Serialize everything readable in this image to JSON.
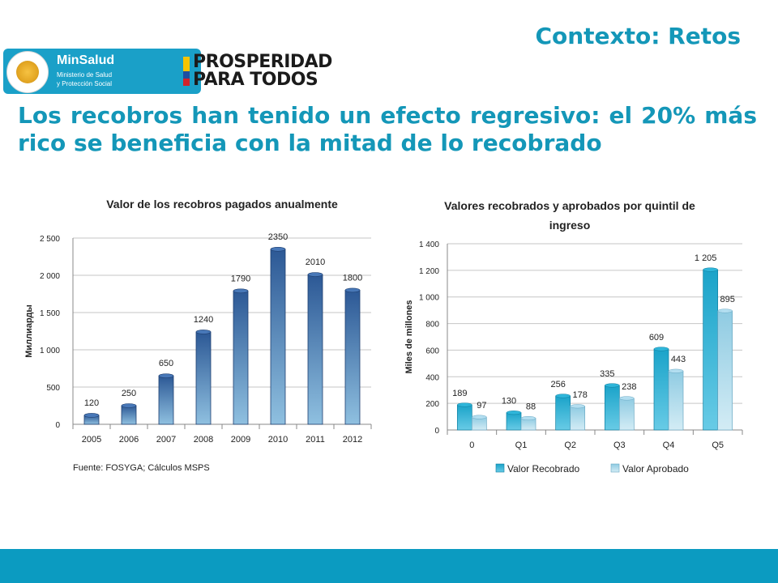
{
  "header": {
    "title": "Contexto: Retos"
  },
  "logos": {
    "minsalud": {
      "name": "MinSalud",
      "line1": "Ministerio de Salud",
      "line2": "y Protección Social"
    },
    "prosperidad": {
      "line1": "PROSPERIDAD",
      "line2": "PARA TODOS"
    }
  },
  "headline": "Los recobros han tenido un efecto regresivo: el 20% más rico se beneficia con la mitad de lo recobrado",
  "chart_data": [
    {
      "type": "bar",
      "title": "Valor de los  recobros pagados anualmente",
      "ylabel": "Миллиарды",
      "categories": [
        "2005",
        "2006",
        "2007",
        "2008",
        "2009",
        "2010",
        "2011",
        "2012"
      ],
      "values": [
        120,
        250,
        650,
        1240,
        1790,
        2350,
        2010,
        1800
      ],
      "data_labels": [
        "120",
        "250",
        "650",
        "1240",
        "1790",
        "2350",
        "2010",
        "1800"
      ],
      "ylim": [
        0,
        2500
      ],
      "yticks": [
        0,
        500,
        1000,
        1500,
        2000,
        2500
      ],
      "ytick_labels": [
        "0",
        "500",
        "1 000",
        "1 500",
        "2 000",
        "2 500"
      ],
      "grid": true,
      "source": "Fuente: FOSYGA; Cálculos MSPS",
      "color": "#3a68a8"
    },
    {
      "type": "bar",
      "title": "Valores recobrados y aprobados por quintil de ingreso",
      "ylabel": "Miles de millones",
      "categories": [
        "0",
        "Q1",
        "Q2",
        "Q3",
        "Q4",
        "Q5"
      ],
      "series": [
        {
          "name": "Valor Recobrado",
          "values": [
            189,
            130,
            256,
            335,
            609,
            1205
          ],
          "labels": [
            "189",
            "130",
            "256",
            "335",
            "609",
            "1 205"
          ],
          "color": "#29b1d4"
        },
        {
          "name": "Valor Aprobado",
          "values": [
            97,
            88,
            178,
            238,
            443,
            895
          ],
          "labels": [
            "97",
            "88",
            "178",
            "238",
            "443",
            "895"
          ],
          "color": "#a6d8eb"
        }
      ],
      "ylim": [
        0,
        1400
      ],
      "yticks": [
        0,
        200,
        400,
        600,
        800,
        1000,
        1200,
        1400
      ],
      "ytick_labels": [
        "0",
        "200",
        "400",
        "600",
        "800",
        "1 000",
        "1 200",
        "1 400"
      ],
      "grid": true,
      "legend_position": "bottom"
    }
  ]
}
